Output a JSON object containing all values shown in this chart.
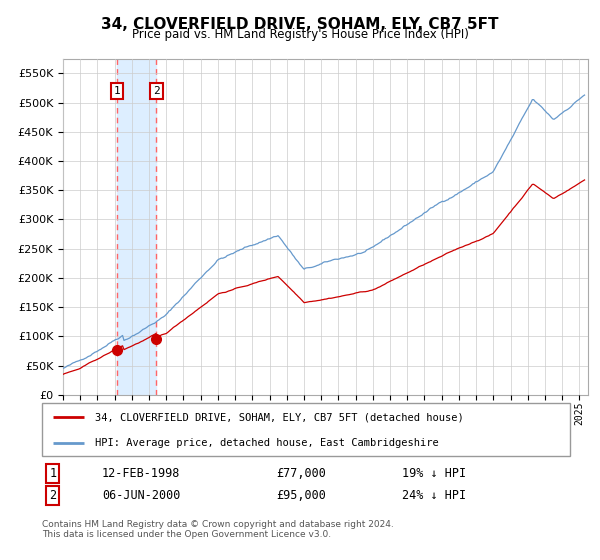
{
  "title": "34, CLOVERFIELD DRIVE, SOHAM, ELY, CB7 5FT",
  "subtitle": "Price paid vs. HM Land Registry's House Price Index (HPI)",
  "ylabel_ticks": [
    0,
    50000,
    100000,
    150000,
    200000,
    250000,
    300000,
    350000,
    400000,
    450000,
    500000,
    550000
  ],
  "xmin": 1995.0,
  "xmax": 2025.5,
  "ymin": 0,
  "ymax": 575000,
  "sale1_date": 1998.12,
  "sale1_price": 77000,
  "sale2_date": 2000.43,
  "sale2_price": 95000,
  "legend1": "34, CLOVERFIELD DRIVE, SOHAM, ELY, CB7 5FT (detached house)",
  "legend2": "HPI: Average price, detached house, East Cambridgeshire",
  "table_row1_num": "1",
  "table_row1_date": "12-FEB-1998",
  "table_row1_price": "£77,000",
  "table_row1_pct": "19% ↓ HPI",
  "table_row2_num": "2",
  "table_row2_date": "06-JUN-2000",
  "table_row2_price": "£95,000",
  "table_row2_pct": "24% ↓ HPI",
  "footnote": "Contains HM Land Registry data © Crown copyright and database right 2024.\nThis data is licensed under the Open Government Licence v3.0.",
  "red_color": "#cc0000",
  "blue_color": "#6699cc",
  "shade_color": "#ddeeff",
  "box_color": "#cc0000"
}
